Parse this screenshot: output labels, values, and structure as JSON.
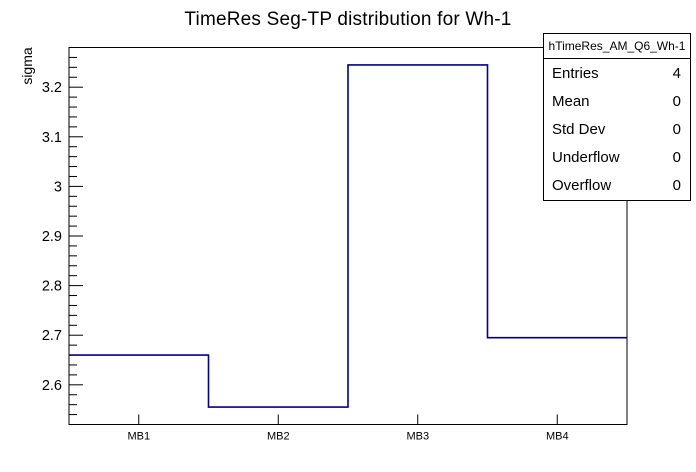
{
  "title": "TimeRes Seg-TP distribution for Wh-1",
  "y_axis_label": "sigma",
  "stats_box": {
    "header": "hTimeRes_AM_Q6_Wh-1",
    "rows": [
      {
        "label": "Entries",
        "value": "4"
      },
      {
        "label": "Mean",
        "value": "0"
      },
      {
        "label": "Std Dev",
        "value": "0"
      },
      {
        "label": "Underflow",
        "value": "0"
      },
      {
        "label": "Overflow",
        "value": "0"
      }
    ]
  },
  "chart_data": {
    "type": "bar",
    "style": "root-step-histogram",
    "title": "TimeRes Seg-TP distribution for Wh-1",
    "xlabel": "",
    "ylabel": "sigma",
    "categories": [
      "MB1",
      "MB2",
      "MB3",
      "MB4"
    ],
    "values": [
      2.66,
      2.555,
      3.245,
      2.695
    ],
    "ylim": [
      2.52,
      3.28
    ],
    "yticks": [
      2.6,
      2.7,
      2.8,
      2.9,
      3.0,
      3.1,
      3.2
    ],
    "ytick_labels": [
      "2.6",
      "2.7",
      "2.8",
      "2.9",
      "3",
      "3.1",
      "3.2"
    ],
    "y_minor_tick_step": 0.02,
    "grid": false,
    "line_color": "#00008c",
    "frame_color": "#000000",
    "legend_position": "stats box top-right"
  }
}
